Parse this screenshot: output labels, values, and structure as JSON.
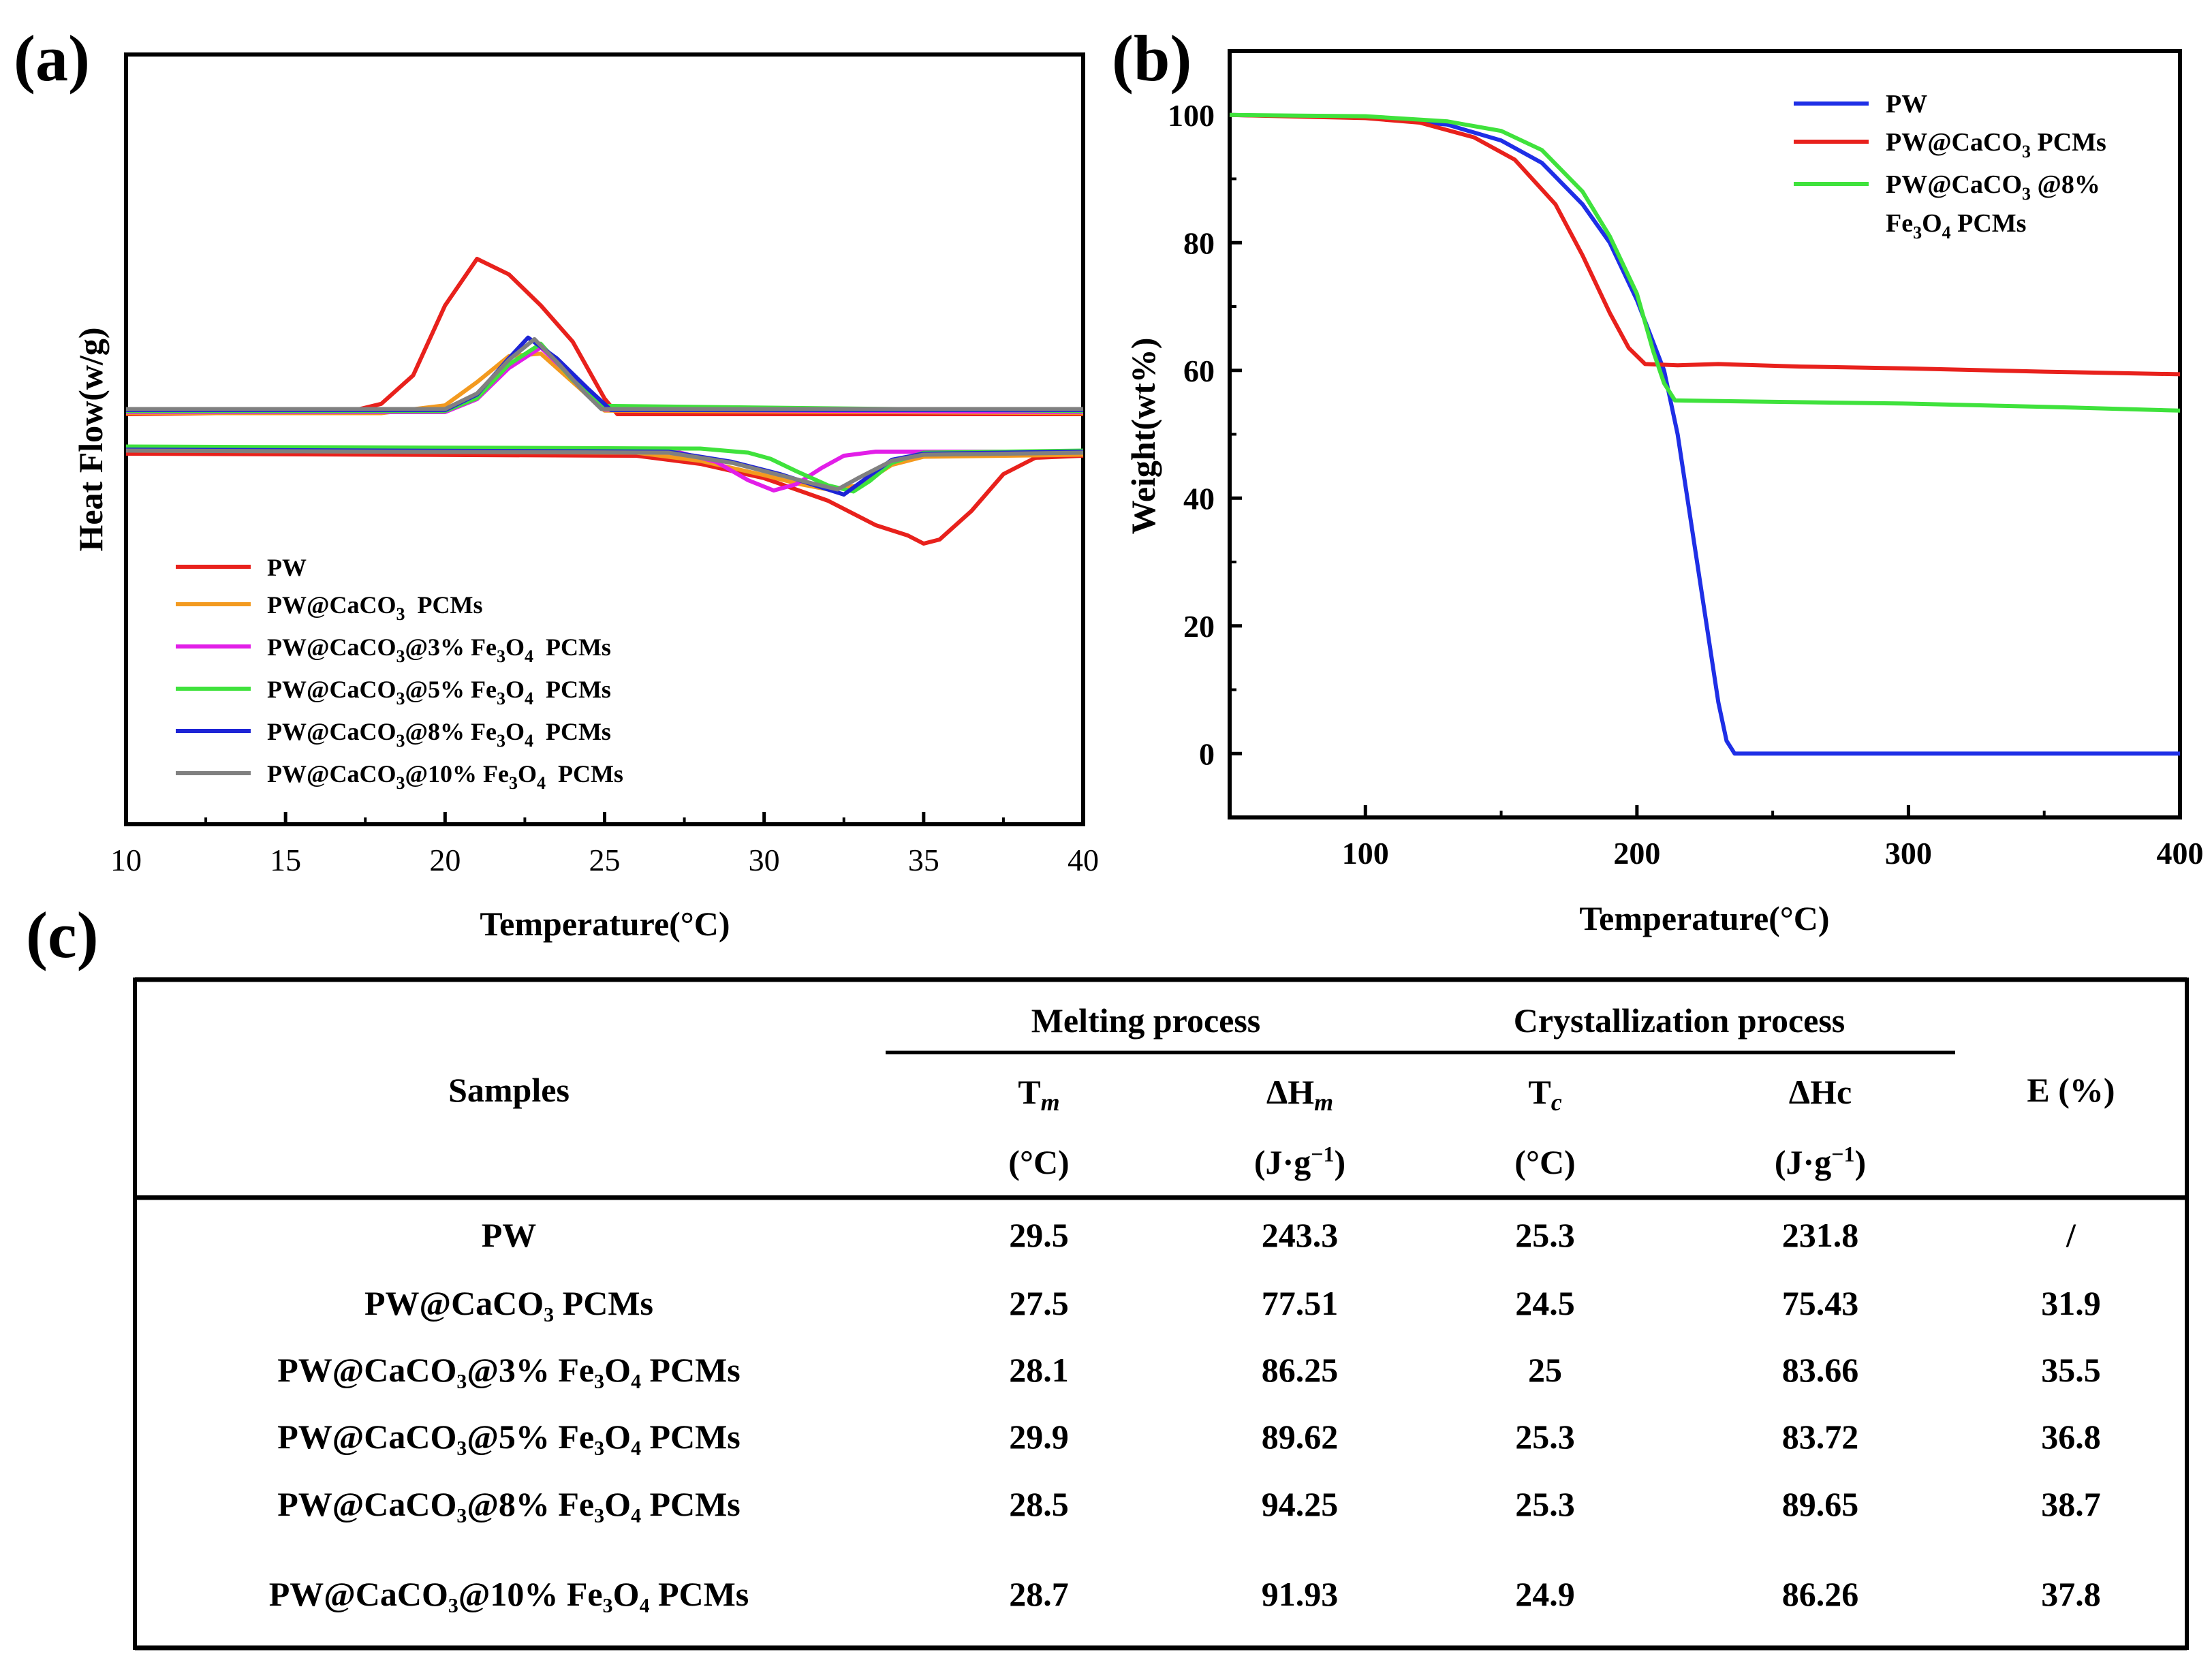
{
  "chart_data": [
    {
      "panel": "(a)",
      "type": "line",
      "title": "",
      "xlabel": "Temperature(°C)",
      "ylabel": "Heat Flow(w/g)",
      "xlim": [
        10,
        40
      ],
      "ylim": [
        -1.5,
        1.5
      ],
      "xticks": [
        10,
        15,
        20,
        25,
        30,
        35,
        40
      ],
      "grid": false,
      "legend_position": "bottom-left",
      "series": [
        {
          "name": "PW",
          "color": "#e8211c",
          "upper": [
            [
              10,
              0
            ],
            [
              17,
              0.01
            ],
            [
              18,
              0.04
            ],
            [
              19,
              0.15
            ],
            [
              20,
              0.42
            ],
            [
              21,
              0.6
            ],
            [
              22,
              0.54
            ],
            [
              23,
              0.42
            ],
            [
              24,
              0.28
            ],
            [
              25,
              0.06
            ],
            [
              25.4,
              0
            ],
            [
              40,
              0
            ]
          ],
          "lower": [
            [
              10,
              -0.1
            ],
            [
              26,
              -0.11
            ],
            [
              28,
              -0.15
            ],
            [
              30,
              -0.22
            ],
            [
              32,
              -0.33
            ],
            [
              33.5,
              -0.45
            ],
            [
              34.5,
              -0.5
            ],
            [
              35,
              -0.54
            ],
            [
              35.5,
              -0.52
            ],
            [
              36.5,
              -0.38
            ],
            [
              37.5,
              -0.2
            ],
            [
              38.5,
              -0.12
            ],
            [
              40,
              -0.11
            ]
          ]
        },
        {
          "name": "PW@CaCO₃ PCMs",
          "color": "#f39a1f",
          "upper": [
            [
              10,
              0
            ],
            [
              18,
              0
            ],
            [
              20,
              0.03
            ],
            [
              21,
              0.12
            ],
            [
              22,
              0.22
            ],
            [
              23,
              0.23
            ],
            [
              24,
              0.12
            ],
            [
              25,
              0.01
            ],
            [
              40,
              0
            ]
          ],
          "lower": [
            [
              10,
              -0.08
            ],
            [
              26,
              -0.09
            ],
            [
              28,
              -0.13
            ],
            [
              30,
              -0.2
            ],
            [
              31,
              -0.24
            ],
            [
              32,
              -0.27
            ],
            [
              33,
              -0.25
            ],
            [
              34,
              -0.15
            ],
            [
              35,
              -0.11
            ],
            [
              40,
              -0.1
            ]
          ]
        },
        {
          "name": "PW@CaCO₃@3% Fe₃O₄ PCMs",
          "color": "#e21ee8",
          "upper": [
            [
              10,
              0
            ],
            [
              20,
              0
            ],
            [
              21,
              0.05
            ],
            [
              22,
              0.17
            ],
            [
              23,
              0.25
            ],
            [
              24,
              0.13
            ],
            [
              25,
              0.01
            ],
            [
              40,
              0
            ]
          ],
          "lower": [
            [
              10,
              -0.06
            ],
            [
              27,
              -0.07
            ],
            [
              28.5,
              -0.13
            ],
            [
              29.5,
              -0.22
            ],
            [
              30.3,
              -0.27
            ],
            [
              31,
              -0.24
            ],
            [
              31.8,
              -0.16
            ],
            [
              32.5,
              -0.1
            ],
            [
              33.5,
              -0.08
            ],
            [
              40,
              -0.08
            ]
          ]
        },
        {
          "name": "PW@CaCO₃@5% Fe₃O₄ PCMs",
          "color": "#3fe23c",
          "upper": [
            [
              10,
              0
            ],
            [
              20,
              0
            ],
            [
              21,
              0.05
            ],
            [
              22,
              0.18
            ],
            [
              23,
              0.26
            ],
            [
              24,
              0.12
            ],
            [
              25,
              0.02
            ],
            [
              40,
              0
            ]
          ],
          "lower": [
            [
              10,
              -0.05
            ],
            [
              28,
              -0.06
            ],
            [
              29.5,
              -0.08
            ],
            [
              30.2,
              -0.11
            ],
            [
              31,
              -0.17
            ],
            [
              32,
              -0.24
            ],
            [
              32.8,
              -0.27
            ],
            [
              33.3,
              -0.22
            ],
            [
              34,
              -0.13
            ],
            [
              35,
              -0.08
            ],
            [
              40,
              -0.07
            ]
          ]
        },
        {
          "name": "PW@CaCO₃@8% Fe₃O₄ PCMs",
          "color": "#1d24d6",
          "upper": [
            [
              10,
              0
            ],
            [
              20,
              0
            ],
            [
              21,
              0.06
            ],
            [
              22,
              0.2
            ],
            [
              22.6,
              0.28
            ],
            [
              23.5,
              0.2
            ],
            [
              24.5,
              0.08
            ],
            [
              25.2,
              0
            ],
            [
              40,
              0
            ]
          ],
          "lower": [
            [
              10,
              -0.06
            ],
            [
              27,
              -0.07
            ],
            [
              29,
              -0.12
            ],
            [
              30.5,
              -0.18
            ],
            [
              31.5,
              -0.23
            ],
            [
              32.5,
              -0.28
            ],
            [
              33.2,
              -0.2
            ],
            [
              34,
              -0.11
            ],
            [
              35,
              -0.08
            ],
            [
              40,
              -0.07
            ]
          ]
        },
        {
          "name": "PW@CaCO₃@10% Fe₃O₄ PCMs",
          "color": "#808080",
          "upper": [
            [
              10,
              0
            ],
            [
              20,
              0
            ],
            [
              21,
              0.06
            ],
            [
              22,
              0.19
            ],
            [
              22.8,
              0.27
            ],
            [
              23.6,
              0.17
            ],
            [
              24.4,
              0.06
            ],
            [
              24.9,
              0
            ],
            [
              40,
              0
            ]
          ],
          "lower": [
            [
              10,
              -0.06
            ],
            [
              27,
              -0.07
            ],
            [
              29,
              -0.12
            ],
            [
              30.5,
              -0.18
            ],
            [
              31.5,
              -0.22
            ],
            [
              32.3,
              -0.25
            ],
            [
              33,
              -0.19
            ],
            [
              34,
              -0.11
            ],
            [
              35,
              -0.08
            ],
            [
              40,
              -0.07
            ]
          ]
        }
      ]
    },
    {
      "panel": "(b)",
      "type": "line",
      "title": "",
      "xlabel": "Temperature(°C)",
      "ylabel": "Weight(wt%)",
      "xlim": [
        50,
        400
      ],
      "ylim": [
        -10,
        110
      ],
      "xticks": [
        100,
        200,
        300,
        400
      ],
      "yticks": [
        0,
        20,
        40,
        60,
        80,
        100
      ],
      "grid": false,
      "legend_position": "top-right",
      "series": [
        {
          "name": "PW",
          "color": "#1e2fe6",
          "points": [
            [
              50,
              100
            ],
            [
              100,
              99.6
            ],
            [
              130,
              98.5
            ],
            [
              150,
              96
            ],
            [
              165,
              92.5
            ],
            [
              180,
              86
            ],
            [
              190,
              80
            ],
            [
              200,
              71
            ],
            [
              210,
              60
            ],
            [
              215,
              50
            ],
            [
              220,
              36
            ],
            [
              225,
              22
            ],
            [
              230,
              8
            ],
            [
              233,
              2
            ],
            [
              236,
              0
            ],
            [
              300,
              0
            ],
            [
              400,
              0
            ]
          ]
        },
        {
          "name": "PW@CaCO₃ PCMs",
          "color": "#e8211c",
          "points": [
            [
              50,
              100
            ],
            [
              100,
              99.5
            ],
            [
              120,
              98.8
            ],
            [
              140,
              96.5
            ],
            [
              155,
              93
            ],
            [
              170,
              86
            ],
            [
              180,
              78
            ],
            [
              190,
              69
            ],
            [
              197,
              63.5
            ],
            [
              203,
              61
            ],
            [
              215,
              60.8
            ],
            [
              230,
              61
            ],
            [
              260,
              60.6
            ],
            [
              300,
              60.3
            ],
            [
              350,
              59.8
            ],
            [
              400,
              59.4
            ]
          ]
        },
        {
          "name": "PW@CaCO₃ @8% Fe₃O₄ PCMs",
          "color": "#3fe23c",
          "points": [
            [
              50,
              100
            ],
            [
              100,
              99.8
            ],
            [
              130,
              99
            ],
            [
              150,
              97.5
            ],
            [
              165,
              94.5
            ],
            [
              180,
              88
            ],
            [
              190,
              81
            ],
            [
              200,
              72
            ],
            [
              206,
              63
            ],
            [
              210,
              58
            ],
            [
              214,
              55.3
            ],
            [
              230,
              55.2
            ],
            [
              300,
              54.8
            ],
            [
              350,
              54.3
            ],
            [
              400,
              53.7
            ]
          ]
        }
      ]
    }
  ],
  "labels": {
    "panel_a": "(a)",
    "panel_b": "(b)",
    "panel_c": "(c)"
  },
  "legend_a": [
    {
      "base": "PW",
      "parts": []
    },
    {
      "base": "PW@CaCO",
      "sub1": "3",
      "rest": "  PCMs"
    },
    {
      "base": "PW@CaCO",
      "sub1": "3",
      "mid": "@3% Fe",
      "sub2": "3",
      "mid2": "O",
      "sub3": "4",
      "rest": "  PCMs"
    },
    {
      "base": "PW@CaCO",
      "sub1": "3",
      "mid": "@5% Fe",
      "sub2": "3",
      "mid2": "O",
      "sub3": "4",
      "rest": "  PCMs"
    },
    {
      "base": "PW@CaCO",
      "sub1": "3",
      "mid": "@8% Fe",
      "sub2": "3",
      "mid2": "O",
      "sub3": "4",
      "rest": "  PCMs"
    },
    {
      "base": "PW@CaCO",
      "sub1": "3",
      "mid": "@10% Fe",
      "sub2": "3",
      "mid2": "O",
      "sub3": "4",
      "rest": "  PCMs"
    }
  ],
  "legend_b": {
    "l1": "PW",
    "l2_base": "PW@CaCO",
    "l2_sub": "3",
    "l2_rest": " PCMs",
    "l3_base": "PW@CaCO",
    "l3_sub": "3",
    "l3_rest": " @8%",
    "l4_base": "Fe",
    "l4_sub1": "3",
    "l4_mid": "O",
    "l4_sub2": "4",
    "l4_rest": " PCMs"
  },
  "table": {
    "header": {
      "samples": "Samples",
      "melting": "Melting process",
      "crystallization": "Crystallization process",
      "e": "E (%)",
      "tm": "T",
      "tm_sub": "m",
      "hm": "ΔH",
      "hm_sub": "m",
      "tc": "T",
      "tc_sub": "c",
      "hc": "ΔHc",
      "unit_c1": "(°C)",
      "unit_j1": "(J·g",
      "unit_j1_sup": "−1",
      "unit_j1_end": ")",
      "unit_c2": "(°C)",
      "unit_j2": "(J·g",
      "unit_j2_sup": "−1",
      "unit_j2_end": ")"
    },
    "rows": [
      {
        "sample": "PW",
        "tm": "29.5",
        "hm": "243.3",
        "tc": "25.3",
        "hc": "231.8",
        "e": "/"
      },
      {
        "sample": "PW@CaCO₃ PCMs",
        "tm": "27.5",
        "hm": "77.51",
        "tc": "24.5",
        "hc": "75.43",
        "e": "31.9"
      },
      {
        "sample": "PW@CaCO₃@3% Fe₃O₄ PCMs",
        "tm": "28.1",
        "hm": "86.25",
        "tc": "25",
        "hc": "83.66",
        "e": "35.5"
      },
      {
        "sample": "PW@CaCO₃@5% Fe₃O₄ PCMs",
        "tm": "29.9",
        "hm": "89.62",
        "tc": "25.3",
        "hc": "83.72",
        "e": "36.8"
      },
      {
        "sample": "PW@CaCO₃@8% Fe₃O₄ PCMs",
        "tm": "28.5",
        "hm": "94.25",
        "tc": "25.3",
        "hc": "89.65",
        "e": "38.7"
      },
      {
        "sample": "PW@CaCO₃@10% Fe₃O₄ PCMs",
        "tm": "28.7",
        "hm": "91.93",
        "tc": "24.9",
        "hc": "86.26",
        "e": "37.8"
      }
    ]
  }
}
